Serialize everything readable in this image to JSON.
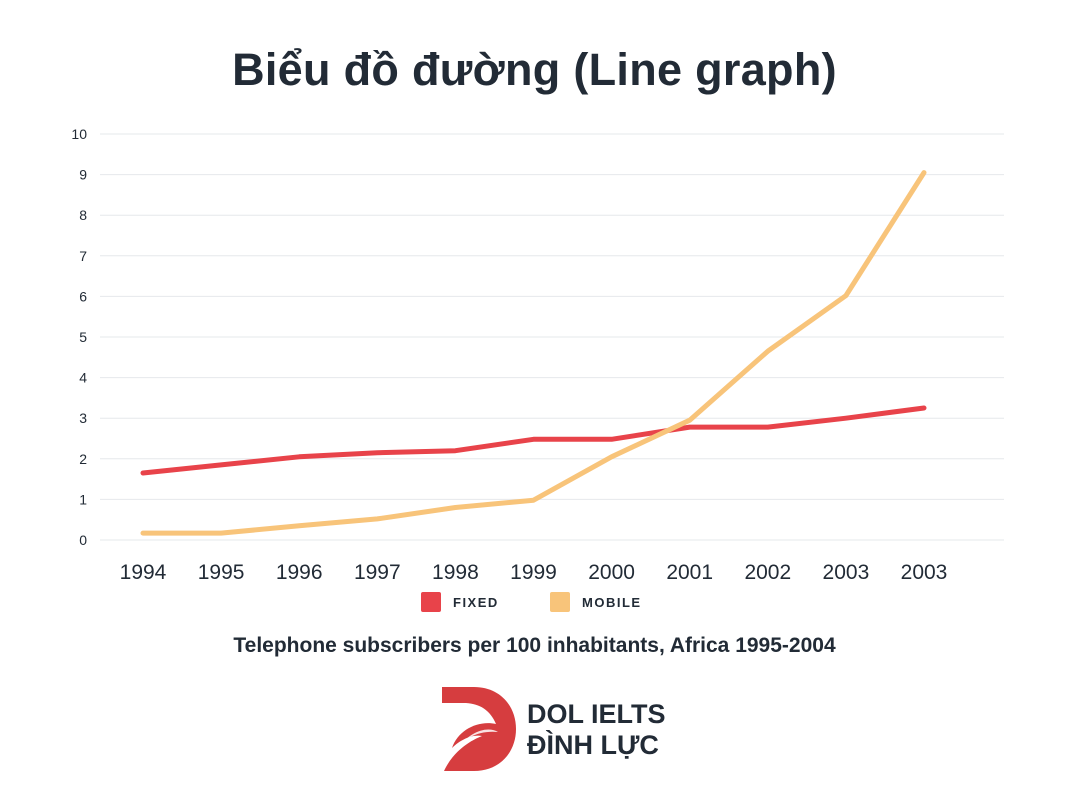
{
  "header": {
    "title": "Biểu đồ đường (Line graph)"
  },
  "chart_data": {
    "type": "line",
    "categories": [
      "1994",
      "1995",
      "1996",
      "1997",
      "1998",
      "1999",
      "2000",
      "2001",
      "2002",
      "2003",
      "2003"
    ],
    "yticks": [
      "0",
      "1",
      "2",
      "3",
      "4",
      "5",
      "6",
      "7",
      "8",
      "9",
      "10"
    ],
    "ylim": [
      0,
      10
    ],
    "grid": true,
    "legend_position": "bottom",
    "subtitle": "Telephone subscribers per 100 inhabitants, Africa 1995-2004",
    "series": [
      {
        "name": "FIXED",
        "color": "#e8434a",
        "values": [
          1.65,
          1.85,
          2.05,
          2.15,
          2.2,
          2.48,
          2.48,
          2.78,
          2.78,
          3.0,
          3.25
        ]
      },
      {
        "name": "MOBILE",
        "color": "#f8c47a",
        "values": [
          0.17,
          0.17,
          0.35,
          0.52,
          0.8,
          0.98,
          2.05,
          2.95,
          4.65,
          6.02,
          9.05
        ]
      }
    ]
  },
  "brand": {
    "line1": "DOL IELTS",
    "line2": "ĐÌNH LỰC",
    "mark_color": "#d63d3f"
  }
}
